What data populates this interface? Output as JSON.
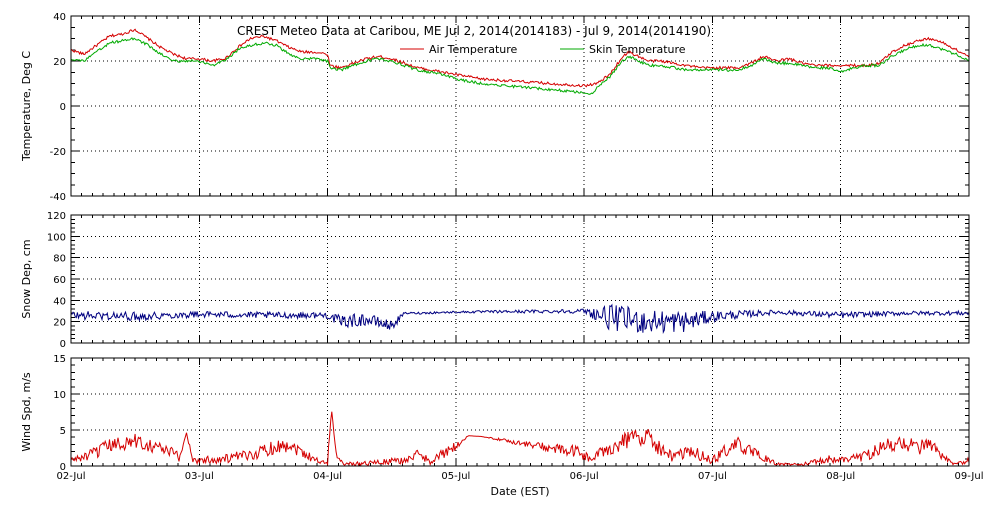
{
  "chart_data": {
    "type": "line",
    "title": "CREST Meteo Data at Caribou, ME   Jul  2, 2014(2014183) - Jul  9, 2014(2014190)",
    "xlabel": "Date (EST)",
    "x_tick_labels": [
      "02-Jul",
      "03-Jul",
      "04-Jul",
      "05-Jul",
      "06-Jul",
      "07-Jul",
      "08-Jul",
      "09-Jul"
    ],
    "x_range": [
      "2014-07-02 00:00",
      "2014-07-09 00:00"
    ],
    "grid": true,
    "legend_position": "top-right",
    "panels": [
      {
        "ylabel": "Temperature, Deg C",
        "ylim": [
          -40,
          40
        ],
        "y_ticks": [
          -40,
          -20,
          0,
          20,
          40
        ],
        "series": [
          {
            "name": "Air Temperature",
            "color": "#d40000",
            "x_days": [
              0,
              0.1,
              0.2,
              0.3,
              0.4,
              0.5,
              0.6,
              0.7,
              0.8,
              0.9,
              1.0,
              1.1,
              1.2,
              1.3,
              1.4,
              1.5,
              1.6,
              1.7,
              1.8,
              1.9,
              2.0,
              2.02,
              2.1,
              2.2,
              2.3,
              2.4,
              2.5,
              2.6,
              2.7,
              2.8,
              2.9,
              3.0,
              3.2,
              4.0,
              4.1,
              4.2,
              4.3,
              4.35,
              4.5,
              4.6,
              4.7,
              4.8,
              4.9,
              5.0,
              5.2,
              5.3,
              5.4,
              5.5,
              5.6,
              5.7,
              5.8,
              5.9,
              6.0,
              6.1,
              6.2,
              6.3,
              6.4,
              6.5,
              6.6,
              6.7,
              6.8,
              6.9,
              7.0
            ],
            "values": [
              25,
              23,
              27,
              31,
              32,
              34,
              30,
              26,
              23,
              21,
              21,
              20,
              21,
              26,
              30,
              31,
              29,
              26,
              24,
              24,
              23,
              18,
              17,
              19,
              21,
              22,
              21,
              19,
              17,
              16,
              15,
              14,
              12,
              9,
              10,
              14,
              22,
              24,
              20,
              20,
              19,
              18,
              17,
              17,
              17,
              19,
              22,
              20,
              21,
              19,
              18,
              18,
              18,
              18,
              18,
              19,
              24,
              27,
              29,
              30,
              28,
              25,
              22
            ]
          },
          {
            "name": "Skin Temperature",
            "color": "#00aa00",
            "x_days": [
              0,
              0.1,
              0.2,
              0.3,
              0.4,
              0.5,
              0.6,
              0.7,
              0.8,
              0.9,
              1.0,
              1.1,
              1.2,
              1.3,
              1.4,
              1.5,
              1.6,
              1.7,
              1.8,
              1.9,
              2.0,
              2.02,
              2.1,
              2.2,
              2.3,
              2.4,
              2.5,
              2.6,
              2.7,
              2.8,
              2.9,
              3.0,
              3.2,
              4.0,
              4.05,
              4.1,
              4.2,
              4.3,
              4.35,
              4.5,
              4.6,
              4.7,
              4.8,
              4.9,
              5.0,
              5.2,
              5.3,
              5.4,
              5.5,
              5.6,
              5.7,
              5.8,
              5.9,
              6.0,
              6.1,
              6.2,
              6.3,
              6.4,
              6.5,
              6.6,
              6.7,
              6.8,
              6.9,
              7.0
            ],
            "values": [
              21,
              20,
              24,
              28,
              29,
              30,
              27,
              23,
              20,
              20,
              20,
              18,
              20,
              25,
              27,
              28,
              27,
              23,
              21,
              21,
              20,
              17,
              16,
              18,
              20,
              21,
              20,
              18,
              16,
              15,
              14,
              12,
              10,
              6,
              5,
              8,
              13,
              20,
              22,
              18,
              18,
              17,
              16,
              16,
              16,
              16,
              18,
              21,
              19,
              19,
              18,
              17,
              17,
              15,
              17,
              18,
              18,
              22,
              25,
              27,
              27,
              25,
              23,
              20
            ]
          }
        ]
      },
      {
        "ylabel": "Snow Dep, cm",
        "ylim": [
          0,
          120
        ],
        "y_ticks": [
          0,
          20,
          40,
          60,
          80,
          100,
          120
        ],
        "series": [
          {
            "color": "#000080",
            "x_days": [
              0,
              0.5,
              1.0,
              1.5,
              2.0,
              2.1,
              2.3,
              2.5,
              2.6,
              2.7,
              3.0,
              4.0,
              4.2,
              4.5,
              4.8,
              5.0,
              5.5,
              6.0,
              6.5,
              7.0
            ],
            "values": [
              26,
              25,
              27,
              26,
              26,
              20,
              22,
              16,
              28,
              28,
              29,
              30,
              24,
              20,
              20,
              25,
              29,
              26,
              28,
              28
            ],
            "noise": [
              4,
              4,
              3,
              3,
              3,
              6,
              6,
              5,
              1,
              1,
              1,
              2,
              12,
              12,
              10,
              5,
              2,
              3,
              2,
              2
            ]
          }
        ]
      },
      {
        "ylabel": "Wind Spd, m/s",
        "ylim": [
          0,
          15
        ],
        "y_ticks": [
          0,
          5,
          10,
          15
        ],
        "series": [
          {
            "color": "#d40000",
            "x_days": [
              0,
              0.15,
              0.3,
              0.5,
              0.7,
              0.85,
              0.9,
              0.95,
              1.0,
              1.2,
              1.4,
              1.55,
              1.7,
              1.85,
              1.95,
              2.0,
              2.03,
              2.07,
              2.12,
              2.2,
              2.4,
              2.6,
              2.7,
              2.8,
              2.95,
              3.1,
              3.2,
              4.0,
              4.05,
              4.15,
              4.35,
              4.5,
              4.6,
              4.7,
              4.85,
              5.0,
              5.1,
              5.2,
              5.35,
              5.5,
              5.6,
              5.75,
              5.9,
              6.0,
              6.2,
              6.35,
              6.5,
              6.6,
              6.7,
              6.8,
              6.9,
              7.0
            ],
            "values": [
              0.8,
              1.5,
              2.8,
              3.5,
              2.5,
              1.2,
              4.7,
              0.8,
              0.8,
              1.0,
              1.5,
              2.5,
              3.0,
              1.5,
              0.5,
              0.5,
              7.8,
              1.5,
              0.3,
              0.3,
              0.5,
              0.8,
              1.5,
              0.8,
              2.0,
              4.2,
              4.1,
              1.7,
              0.8,
              2.0,
              3.8,
              4.2,
              2.2,
              1.2,
              2.0,
              0.7,
              2.2,
              3.0,
              1.5,
              0.3,
              0.2,
              0.3,
              1.0,
              0.8,
              1.5,
              2.8,
              3.2,
              2.5,
              3.0,
              1.0,
              0.2,
              0.8
            ],
            "noise": [
              0.5,
              0.8,
              1.0,
              1.0,
              1.0,
              0.8,
              0.3,
              0.5,
              0.6,
              0.7,
              0.8,
              1.0,
              1.0,
              0.8,
              0.3,
              0.3,
              0.3,
              0.3,
              0.2,
              0.3,
              0.4,
              0.5,
              0.8,
              0.6,
              1.0,
              0,
              0,
              1.0,
              0.6,
              1.0,
              1.2,
              1.2,
              1.0,
              0.8,
              1.0,
              0.5,
              1.0,
              1.0,
              0.8,
              0.2,
              0.2,
              0.3,
              0.6,
              0.5,
              0.8,
              1.0,
              1.0,
              1.0,
              1.0,
              0.6,
              0.2,
              0.4
            ]
          }
        ]
      }
    ]
  }
}
